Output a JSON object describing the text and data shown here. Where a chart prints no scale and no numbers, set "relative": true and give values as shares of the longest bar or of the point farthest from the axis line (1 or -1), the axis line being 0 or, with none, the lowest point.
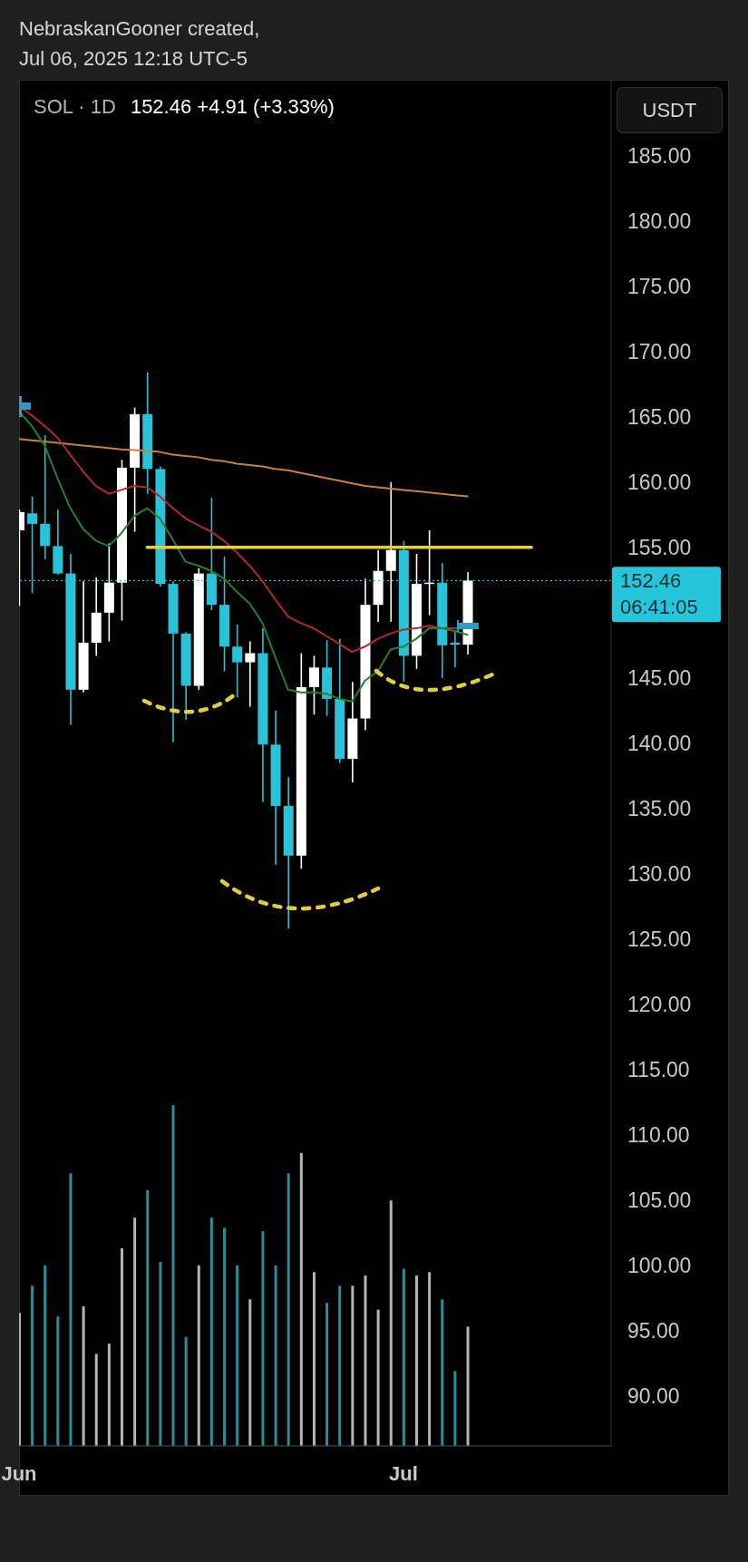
{
  "chart_data": [
    {
      "type": "candlestick",
      "title": "SOL · 1D",
      "subtitle": "152.46 +4.91 (+3.33%)",
      "ylabel": "USDT",
      "annotations": [
        "NebraskanGooner created,",
        "Jul 06, 2025 12:18 UTC-5",
        "06:41:05"
      ],
      "x": [
        "2025-06-01",
        "2025-06-02",
        "2025-06-03",
        "2025-06-04",
        "2025-06-05",
        "2025-06-06",
        "2025-06-07",
        "2025-06-08",
        "2025-06-09",
        "2025-06-10",
        "2025-06-11",
        "2025-06-12",
        "2025-06-13",
        "2025-06-14",
        "2025-06-15",
        "2025-06-16",
        "2025-06-17",
        "2025-06-18",
        "2025-06-19",
        "2025-06-20",
        "2025-06-21",
        "2025-06-22",
        "2025-06-23",
        "2025-06-24",
        "2025-06-25",
        "2025-06-26",
        "2025-06-27",
        "2025-06-28",
        "2025-06-29",
        "2025-06-30",
        "2025-07-01",
        "2025-07-02",
        "2025-07-03",
        "2025-07-04",
        "2025-07-05",
        "2025-07-06"
      ],
      "ohlc": [
        [
          156.3,
          157.9,
          150.5,
          157.7
        ],
        [
          157.6,
          158.9,
          151.5,
          156.8
        ],
        [
          156.8,
          163.6,
          154.1,
          155.1
        ],
        [
          155.1,
          157.9,
          152.9,
          153.0
        ],
        [
          153.0,
          154.5,
          141.4,
          144.1
        ],
        [
          144.1,
          152.4,
          143.9,
          147.7
        ],
        [
          147.7,
          152.7,
          146.7,
          150.0
        ],
        [
          150.0,
          155.3,
          147.8,
          152.3
        ],
        [
          152.3,
          161.7,
          149.4,
          161.1
        ],
        [
          161.1,
          165.7,
          156.2,
          165.2
        ],
        [
          165.2,
          168.4,
          159.1,
          161.0
        ],
        [
          161.0,
          161.2,
          152.0,
          152.2
        ],
        [
          152.2,
          152.4,
          140.1,
          148.4
        ],
        [
          148.4,
          148.5,
          141.8,
          144.4
        ],
        [
          144.4,
          153.4,
          144.1,
          153.0
        ],
        [
          153.0,
          158.8,
          150.2,
          150.6
        ],
        [
          150.6,
          154.3,
          145.5,
          147.4
        ],
        [
          147.4,
          149.1,
          143.5,
          146.2
        ],
        [
          146.2,
          147.8,
          142.8,
          146.9
        ],
        [
          146.9,
          148.8,
          135.5,
          139.9
        ],
        [
          139.9,
          142.5,
          130.7,
          135.2
        ],
        [
          135.2,
          137.4,
          125.8,
          131.4
        ],
        [
          131.4,
          146.9,
          130.4,
          144.3
        ],
        [
          144.3,
          146.7,
          142.2,
          145.8
        ],
        [
          145.8,
          147.9,
          142.1,
          143.4
        ],
        [
          143.4,
          148.0,
          138.5,
          138.8
        ],
        [
          138.8,
          144.7,
          137.0,
          141.9
        ],
        [
          141.9,
          152.6,
          141.0,
          150.6
        ],
        [
          150.6,
          154.8,
          149.3,
          153.2
        ],
        [
          153.2,
          160.0,
          149.3,
          154.8
        ],
        [
          154.8,
          155.5,
          144.7,
          146.7
        ],
        [
          146.7,
          154.5,
          145.7,
          152.2
        ],
        [
          152.2,
          156.3,
          149.8,
          152.3
        ],
        [
          152.3,
          153.8,
          145.0,
          147.5
        ],
        [
          147.7,
          148.6,
          145.8,
          147.55
        ],
        [
          147.55,
          153.1,
          146.8,
          152.46
        ]
      ],
      "colors": [
        "#ffffff",
        "#29c2d8",
        "#29c2d8",
        "#29c2d8",
        "#29c2d8",
        "#ffffff",
        "#ffffff",
        "#ffffff",
        "#ffffff",
        "#ffffff",
        "#29c2d8",
        "#29c2d8",
        "#29c2d8",
        "#29c2d8",
        "#ffffff",
        "#29c2d8",
        "#29c2d8",
        "#29c2d8",
        "#ffffff",
        "#29c2d8",
        "#29c2d8",
        "#29c2d8",
        "#ffffff",
        "#ffffff",
        "#29c2d8",
        "#29c2d8",
        "#ffffff",
        "#ffffff",
        "#ffffff",
        "#ffffff",
        "#29c2d8",
        "#ffffff",
        "#ffffff",
        "#29c2d8",
        "#29c2d8",
        "#ffffff"
      ],
      "series": [
        {
          "type": "line",
          "color": "#c8803f",
          "values": [
            163.3,
            163.2,
            163.1,
            163.0,
            162.9,
            162.8,
            162.7,
            162.6,
            162.5,
            162.45,
            162.4,
            162.3,
            162.1,
            162.0,
            161.9,
            161.7,
            161.6,
            161.4,
            161.3,
            161.2,
            161.0,
            160.9,
            160.7,
            160.5,
            160.3,
            160.1,
            159.9,
            159.7,
            159.6,
            159.5,
            159.4,
            159.3,
            159.2,
            159.1,
            159.0,
            158.9
          ]
        },
        {
          "type": "line",
          "color": "#b3292b",
          "values": [
            165.8,
            165.1,
            164.3,
            163.4,
            162.1,
            160.8,
            159.7,
            159.1,
            159.4,
            159.7,
            159.6,
            158.9,
            158.0,
            157.2,
            156.7,
            156.2,
            155.5,
            154.6,
            153.6,
            152.4,
            151.0,
            149.7,
            149.2,
            148.8,
            148.2,
            147.6,
            147.0,
            147.4,
            148.0,
            148.4,
            148.7,
            148.8,
            149.0,
            148.8,
            148.8,
            148.8
          ]
        },
        {
          "type": "line",
          "color": "#23802a",
          "values": [
            165.4,
            164.3,
            162.8,
            160.3,
            158.0,
            156.4,
            155.5,
            155.1,
            156.1,
            157.4,
            158.0,
            157.2,
            155.6,
            153.9,
            153.6,
            153.2,
            152.6,
            151.6,
            150.7,
            149.2,
            146.6,
            144.1,
            143.9,
            143.9,
            143.8,
            143.4,
            143.2,
            144.8,
            145.5,
            147.2,
            147.4,
            148.0,
            148.8,
            148.8,
            148.6,
            148.3
          ]
        },
        {
          "type": "line",
          "color": "#e6cf3c",
          "x": [
            "2025-06-11",
            "2025-07-11"
          ],
          "values": [
            155,
            155
          ]
        }
      ],
      "xlim": [
        "2025-06-01",
        "2025-07-17T05:00"
      ],
      "xticks": [
        {
          "value": "2025-06-01",
          "label": "Jun"
        },
        {
          "value": "2025-07-01",
          "label": "Jul"
        }
      ],
      "ylim": [
        86.2,
        190.8
      ],
      "yticks": [
        {
          "value": 90,
          "label": "90.00"
        },
        {
          "value": 95,
          "label": "95.00"
        },
        {
          "value": 100,
          "label": "100.00"
        },
        {
          "value": 105,
          "label": "105.00"
        },
        {
          "value": 110,
          "label": "110.00"
        },
        {
          "value": 115,
          "label": "115.00"
        },
        {
          "value": 120,
          "label": "120.00"
        },
        {
          "value": 125,
          "label": "125.00"
        },
        {
          "value": 130,
          "label": "130.00"
        },
        {
          "value": 135,
          "label": "135.00"
        },
        {
          "value": 140,
          "label": "140.00"
        },
        {
          "value": 145,
          "label": "145.00"
        },
        {
          "value": 155,
          "label": "155.00"
        },
        {
          "value": 160,
          "label": "160.00"
        },
        {
          "value": 165,
          "label": "165.00"
        },
        {
          "value": 170,
          "label": "170.00"
        },
        {
          "value": 175,
          "label": "175.00"
        },
        {
          "value": 180,
          "label": "180.00"
        },
        {
          "value": 185,
          "label": "185.00"
        }
      ],
      "ref_lines": [
        {
          "axis": "y",
          "value": 152.46,
          "label": "152.46",
          "color": "#26c6da",
          "line_style": "dotted"
        }
      ]
    },
    {
      "type": "bar",
      "relative": true,
      "tick_labels": false,
      "x": [
        "2025-06-01",
        "2025-06-02",
        "2025-06-03",
        "2025-06-04",
        "2025-06-05",
        "2025-06-06",
        "2025-06-07",
        "2025-06-08",
        "2025-06-09",
        "2025-06-10",
        "2025-06-11",
        "2025-06-12",
        "2025-06-13",
        "2025-06-14",
        "2025-06-15",
        "2025-06-16",
        "2025-06-17",
        "2025-06-18",
        "2025-06-19",
        "2025-06-20",
        "2025-06-21",
        "2025-06-22",
        "2025-06-23",
        "2025-06-24",
        "2025-06-25",
        "2025-06-26",
        "2025-06-27",
        "2025-06-28",
        "2025-06-29",
        "2025-06-30",
        "2025-07-01",
        "2025-07-02",
        "2025-07-03",
        "2025-07-04",
        "2025-07-05",
        "2025-07-06"
      ],
      "values": [
        0.39,
        0.47,
        0.53,
        0.38,
        0.8,
        0.41,
        0.27,
        0.3,
        0.58,
        0.67,
        0.75,
        0.54,
        1,
        0.32,
        0.53,
        0.67,
        0.64,
        0.53,
        0.43,
        0.63,
        0.53,
        0.8,
        0.86,
        0.51,
        0.42,
        0.47,
        0.47,
        0.5,
        0.4,
        0.72,
        0.52,
        0.5,
        0.51,
        0.43,
        0.22,
        0.35
      ],
      "colors": [
        "#b4b4b4",
        "#2a8d9a",
        "#2a8d9a",
        "#2a8d9a",
        "#2a8d9a",
        "#b4b4b4",
        "#b4b4b4",
        "#b4b4b4",
        "#b4b4b4",
        "#b4b4b4",
        "#2a8d9a",
        "#2a8d9a",
        "#2a8d9a",
        "#2a8d9a",
        "#b4b4b4",
        "#2a8d9a",
        "#2a8d9a",
        "#2a8d9a",
        "#b4b4b4",
        "#2a8d9a",
        "#2a8d9a",
        "#2a8d9a",
        "#b4b4b4",
        "#b4b4b4",
        "#2a8d9a",
        "#2a8d9a",
        "#b4b4b4",
        "#b4b4b4",
        "#b4b4b4",
        "#b4b4b4",
        "#2a8d9a",
        "#b4b4b4",
        "#b4b4b4",
        "#2a8d9a",
        "#2a8d9a",
        "#b4b4b4"
      ],
      "xlim": [
        "2025-06-01",
        "2025-07-17T05:00"
      ]
    }
  ]
}
